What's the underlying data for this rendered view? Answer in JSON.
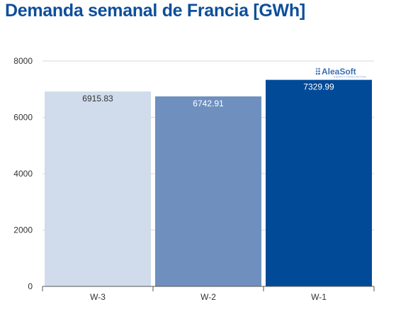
{
  "title": "Demanda semanal de Francia [GWh]",
  "logo": {
    "name": "AleaSoft",
    "tagline": "ENERGY FORECASTING"
  },
  "chart_data": {
    "type": "bar",
    "title": "Demanda semanal de Francia [GWh]",
    "categories": [
      "W-3",
      "W-2",
      "W-1"
    ],
    "values": [
      6915.83,
      6742.91,
      7329.99
    ],
    "value_labels": [
      "6915.83",
      "6742.91",
      "7329.99"
    ],
    "bar_colors": [
      "#d0dcec",
      "#6f90bf",
      "#004a98"
    ],
    "label_colors": [
      "#333333",
      "#ffffff",
      "#ffffff"
    ],
    "ylim": [
      0,
      8000
    ],
    "yticks": [
      0,
      2000,
      4000,
      6000,
      8000
    ],
    "grid": true,
    "legend": "none",
    "xlabel": "",
    "ylabel": ""
  }
}
